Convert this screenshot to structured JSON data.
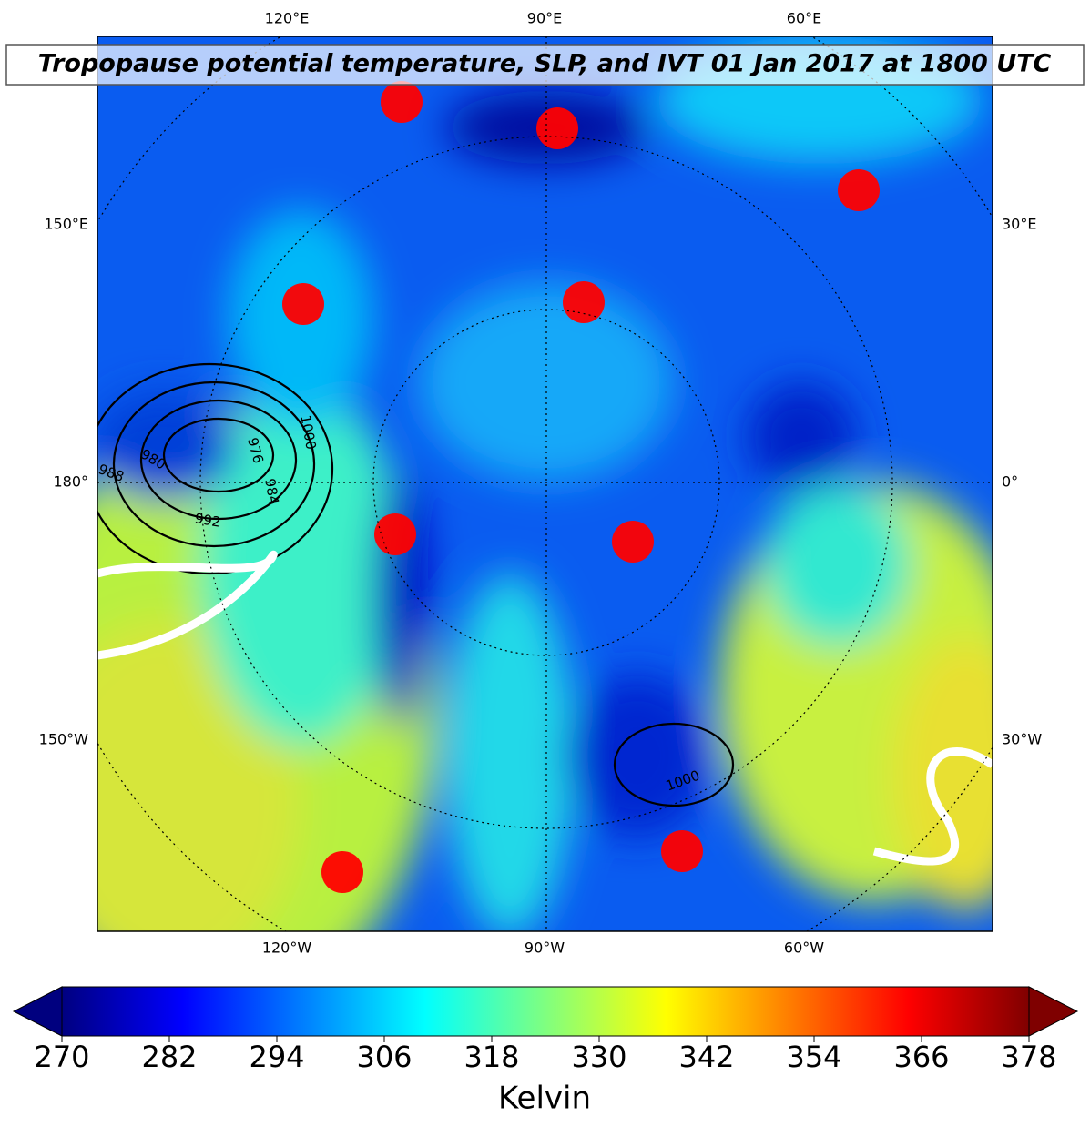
{
  "map": {
    "title": "Tropopause potential temperature, SLP, and IVT 01 Jan 2017 at 1800 UTC",
    "lon_labels_top": [
      "120°E",
      "90°E",
      "60°E"
    ],
    "lon_labels_bottom": [
      "120°W",
      "90°W",
      "60°W"
    ],
    "lat_labels_left": [
      "150°E",
      "180°",
      "150°W"
    ],
    "lat_labels_right": [
      "30°E",
      "0°",
      "30°W"
    ],
    "contour_labels": [
      "1000",
      "976",
      "980",
      "988",
      "992",
      "984",
      "1000"
    ]
  },
  "colorbar": {
    "label": "Kelvin",
    "lim": [
      270,
      378
    ],
    "ticks": [
      270,
      282,
      294,
      306,
      318,
      330,
      342,
      354,
      366,
      378
    ]
  }
}
